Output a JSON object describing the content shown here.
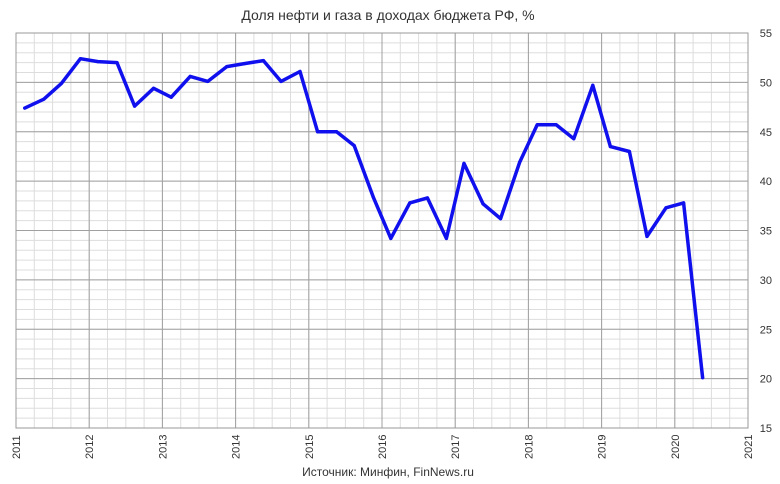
{
  "chart_data": {
    "type": "line",
    "title": "Доля нефти и газа в доходах бюджета РФ, %",
    "source": "Источник: Минфин, FinNews.ru",
    "xlabel": "",
    "ylabel": "",
    "xlim": [
      2011,
      2021
    ],
    "ylim": [
      15,
      55
    ],
    "x_ticks": [
      "2011",
      "2012",
      "2013",
      "2014",
      "2015",
      "2016",
      "2017",
      "2018",
      "2019",
      "2020",
      "2021"
    ],
    "y_ticks": [
      "15",
      "20",
      "25",
      "30",
      "35",
      "40",
      "45",
      "50",
      "55"
    ],
    "y_axis_side": "right",
    "grid": true,
    "line_color": "#1010ee",
    "series": [
      {
        "x": [
          2011.12,
          2011.38,
          2011.62,
          2011.88,
          2012.12,
          2012.38,
          2012.62,
          2012.88,
          2013.12,
          2013.38,
          2013.62,
          2013.88,
          2014.12,
          2014.38,
          2014.62,
          2014.88,
          2015.12,
          2015.38,
          2015.62,
          2015.88,
          2016.12,
          2016.38,
          2016.62,
          2016.88,
          2017.12,
          2017.38,
          2017.62,
          2017.88,
          2018.12,
          2018.38,
          2018.62,
          2018.88,
          2019.12,
          2019.38,
          2019.62,
          2019.88,
          2020.12,
          2020.38
        ],
        "values": [
          47.4,
          48.3,
          49.9,
          52.4,
          52.1,
          52.0,
          47.6,
          49.4,
          48.5,
          50.6,
          50.1,
          51.6,
          51.9,
          52.2,
          50.1,
          51.1,
          45.0,
          45.0,
          43.6,
          38.4,
          34.2,
          37.8,
          38.3,
          34.2,
          41.8,
          37.7,
          36.2,
          41.9,
          45.7,
          45.7,
          44.3,
          49.7,
          43.5,
          43.0,
          34.4,
          37.3,
          37.8,
          20.1
        ]
      }
    ]
  }
}
